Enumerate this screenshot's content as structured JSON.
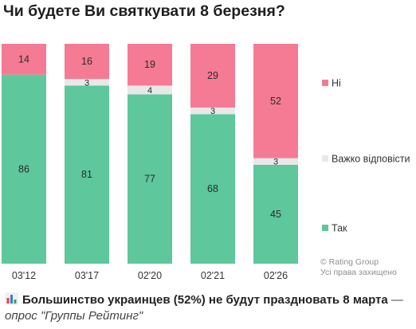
{
  "chart_data": {
    "type": "bar",
    "stacked": true,
    "title": "Чи будете Ви святкувати 8 березня?",
    "categories": [
      "03'12",
      "03'17",
      "02'20",
      "02'21",
      "02'26"
    ],
    "series": [
      {
        "name": "Так",
        "color": "#5ec79b",
        "values": [
          86,
          81,
          77,
          68,
          45
        ]
      },
      {
        "name": "Важко відповісти",
        "color": "#e8e8e8",
        "values": [
          0,
          3,
          4,
          3,
          3
        ]
      },
      {
        "name": "Ні",
        "color": "#f47b93",
        "values": [
          14,
          16,
          19,
          29,
          52
        ]
      }
    ],
    "ylim": [
      0,
      100
    ],
    "grid": false,
    "legend_placement": "right",
    "xlabel": "",
    "ylabel": ""
  },
  "credit": {
    "line1": "© Rating Group",
    "line2": "Усі права захищено"
  },
  "caption": {
    "icon": "bar-chart-emoji-icon",
    "main": "Большинство украинцев (52%) не будут праздновать 8 марта",
    "dash": " — ",
    "source": "опрос \"Группы Рейтинг\""
  }
}
